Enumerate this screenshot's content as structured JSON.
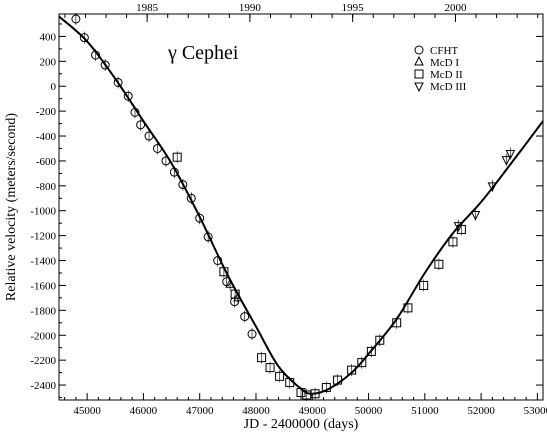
{
  "chart_data": {
    "type": "scatter",
    "title": "γ Cephei",
    "xlabel": "JD - 2400000 (days)",
    "ylabel": "Relative velocity (meters/second)",
    "xlim": [
      44500,
      53100
    ],
    "ylim": [
      -2520,
      580
    ],
    "x_ticks": [
      45000,
      46000,
      47000,
      48000,
      49000,
      50000,
      51000,
      52000,
      53000
    ],
    "y_ticks": [
      400,
      200,
      0,
      -200,
      -400,
      -600,
      -800,
      -1000,
      -1200,
      -1400,
      -1600,
      -1800,
      -2000,
      -2200,
      -2400
    ],
    "top_axis": {
      "label_ticks": [
        {
          "label": "1985",
          "jd": 46066
        },
        {
          "label": "1990",
          "jd": 47892
        },
        {
          "label": "1995",
          "jd": 49718
        },
        {
          "label": "2000",
          "jd": 51545
        }
      ]
    },
    "grid": false,
    "legend_position": "top-right",
    "series": [
      {
        "name": "CFHT",
        "marker": "circle",
        "x": [
          44800,
          44950,
          45150,
          45320,
          45550,
          45730,
          45850,
          45950,
          46100,
          46250,
          46400,
          46550,
          46700,
          46850,
          47000,
          47150,
          47320,
          47480,
          47620,
          47800,
          47930
        ],
        "y": [
          540,
          390,
          250,
          170,
          30,
          -80,
          -210,
          -310,
          -400,
          -500,
          -600,
          -690,
          -790,
          -900,
          -1060,
          -1210,
          -1400,
          -1570,
          -1730,
          -1850,
          -1990
        ]
      },
      {
        "name": "McD I",
        "marker": "triangle-up",
        "x": [
          47540,
          47680
        ],
        "y": [
          -1590,
          -1700
        ]
      },
      {
        "name": "McD II",
        "marker": "square",
        "x": [
          46600,
          47430,
          47630,
          48100,
          48250,
          48420,
          48600,
          48800,
          48900,
          49050,
          49250,
          49450,
          49700,
          49880,
          50050,
          50200,
          50500,
          50700,
          50980,
          51250,
          51500,
          51650
        ],
        "y": [
          -570,
          -1490,
          -1670,
          -2180,
          -2260,
          -2330,
          -2380,
          -2460,
          -2480,
          -2470,
          -2420,
          -2360,
          -2280,
          -2220,
          -2130,
          -2040,
          -1900,
          -1780,
          -1600,
          -1430,
          -1250,
          -1150
        ]
      },
      {
        "name": "McD III",
        "marker": "triangle-down",
        "x": [
          51600,
          51900,
          52200,
          52450,
          52520
        ],
        "y": [
          -1120,
          -1030,
          -800,
          -590,
          -540
        ]
      }
    ],
    "fit_curve": {
      "x": [
        44500,
        45000,
        45500,
        46000,
        46500,
        47000,
        47500,
        48000,
        48400,
        48800,
        49000,
        49300,
        49700,
        50000,
        50500,
        51000,
        51500,
        52000,
        52500,
        53100
      ],
      "y": [
        560,
        360,
        60,
        -280,
        -620,
        -1050,
        -1520,
        -1930,
        -2250,
        -2430,
        -2470,
        -2430,
        -2300,
        -2150,
        -1870,
        -1500,
        -1180,
        -930,
        -640,
        -280
      ]
    }
  }
}
